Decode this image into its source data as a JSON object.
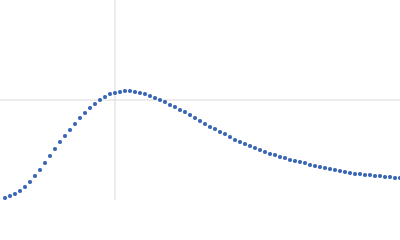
{
  "chart_data": {
    "type": "scatter",
    "x": [
      5,
      10,
      15,
      20,
      25,
      30,
      35,
      40,
      45,
      50,
      55,
      60,
      65,
      70,
      75,
      80,
      85,
      90,
      95,
      100,
      105,
      110,
      115,
      120,
      125,
      130,
      135,
      140,
      145,
      150,
      155,
      160,
      165,
      170,
      175,
      180,
      185,
      190,
      195,
      200,
      205,
      210,
      215,
      220,
      225,
      230,
      235,
      240,
      245,
      250,
      255,
      260,
      265,
      270,
      275,
      280,
      285,
      290,
      295,
      300,
      305,
      310,
      315,
      320,
      325,
      330,
      335,
      340,
      345,
      350,
      355,
      360,
      365,
      370,
      375,
      380,
      385,
      390,
      395,
      400
    ],
    "series": [
      {
        "color": "#3a67b5",
        "values": [
          2,
          4,
          6,
          9,
          13,
          18,
          24,
          30,
          37,
          44,
          51,
          58,
          64,
          70,
          76,
          82,
          87,
          92,
          96,
          100,
          103,
          106,
          107,
          108,
          109,
          109,
          108,
          107,
          106,
          104,
          102,
          100,
          98,
          95,
          93,
          90,
          88,
          85,
          82,
          79,
          76,
          73,
          71,
          68,
          66,
          63,
          60,
          58,
          56,
          54,
          52,
          50,
          48,
          46,
          45,
          43,
          42,
          40,
          39,
          38,
          37,
          35,
          34,
          33,
          32,
          31,
          30,
          29,
          28,
          27,
          26,
          26,
          25,
          25,
          24,
          24,
          23,
          23,
          22,
          22
        ]
      }
    ],
    "xlim": [
      0,
      400
    ],
    "ylim": [
      0,
      200
    ],
    "xticks": [
      115
    ],
    "yticks": [
      100
    ],
    "grid": true,
    "tick_labels": false
  }
}
